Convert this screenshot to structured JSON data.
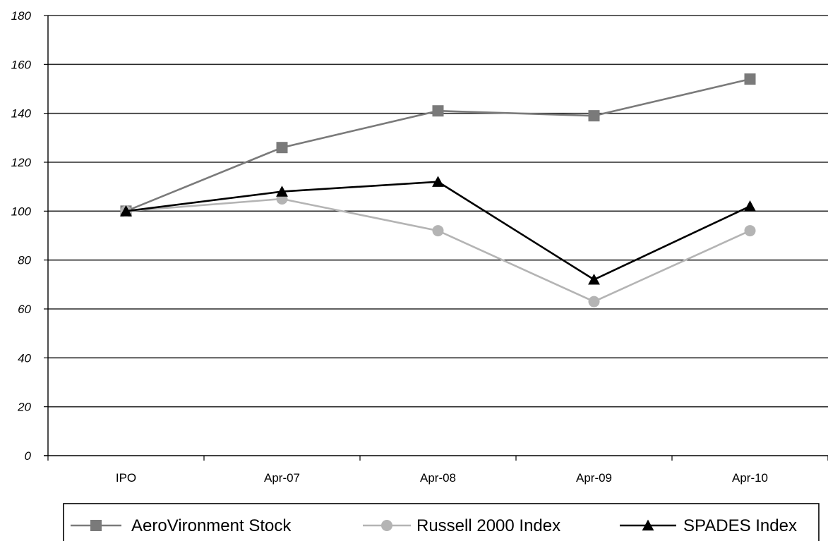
{
  "chart_data": {
    "type": "line",
    "categories": [
      "IPO",
      "Apr-07",
      "Apr-08",
      "Apr-09",
      "Apr-10"
    ],
    "ylim": [
      0,
      180
    ],
    "yticks": [
      0,
      20,
      40,
      60,
      80,
      100,
      120,
      140,
      160,
      180
    ],
    "grid": true,
    "legend_position": "bottom",
    "series": [
      {
        "name": "AeroVironment Stock",
        "values": [
          100,
          126,
          141,
          139,
          154
        ],
        "color": "#7a7a7a",
        "marker": "square"
      },
      {
        "name": "Russell 2000 Index",
        "values": [
          100,
          105,
          92,
          63,
          92
        ],
        "color": "#b4b4b4",
        "marker": "circle"
      },
      {
        "name": "SPADES Index",
        "values": [
          100,
          108,
          112,
          72,
          102
        ],
        "color": "#000000",
        "marker": "triangle"
      }
    ]
  }
}
